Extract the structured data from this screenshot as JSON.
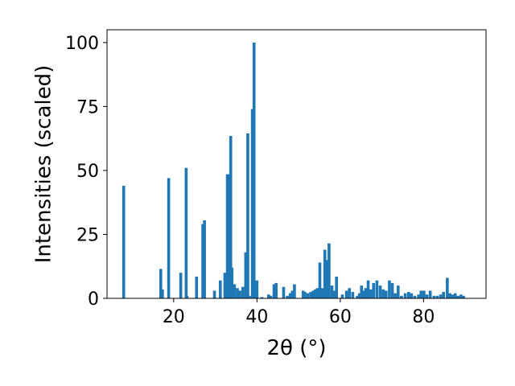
{
  "chart_data": {
    "type": "bar",
    "title": "",
    "xlabel": "2θ (°)",
    "ylabel": "Intensities (scaled)",
    "xlim": [
      4,
      95
    ],
    "ylim": [
      0,
      105
    ],
    "xticks": [
      20,
      40,
      60,
      80
    ],
    "yticks": [
      0,
      25,
      50,
      75,
      100
    ],
    "grid": false,
    "legend": "none",
    "bar_color": "#1f77b4",
    "bar_width": 0.7,
    "x": [
      8.0,
      16.9,
      17.3,
      18.8,
      21.7,
      23.0,
      23.2,
      25.5,
      27.0,
      27.4,
      29.8,
      31.2,
      32.3,
      32.9,
      33.3,
      33.7,
      34.0,
      34.6,
      35.3,
      35.9,
      36.6,
      37.3,
      37.8,
      38.2,
      38.9,
      39.3,
      39.6,
      40.0,
      41.2,
      42.8,
      43.3,
      44.1,
      44.6,
      46.4,
      47.3,
      48.0,
      48.5,
      49.0,
      51.1,
      51.5,
      52.2,
      52.9,
      53.5,
      54.0,
      54.5,
      55.1,
      55.7,
      56.3,
      56.8,
      57.3,
      58.0,
      58.6,
      59.1,
      60.5,
      61.5,
      62.2,
      63.0,
      64.1,
      64.6,
      65.1,
      65.6,
      66.1,
      66.7,
      67.3,
      68.0,
      68.8,
      69.6,
      70.3,
      71.0,
      71.8,
      72.5,
      73.2,
      73.9,
      74.7,
      75.6,
      76.4,
      77.1,
      77.9,
      78.8,
      79.4,
      80.1,
      80.8,
      81.6,
      82.5,
      83.3,
      84.1,
      84.8,
      85.7,
      86.3,
      86.9,
      87.6,
      88.3,
      89.0,
      89.6
    ],
    "values": [
      44,
      11.5,
      3.5,
      47,
      10,
      51,
      1,
      8.5,
      29,
      30.5,
      3,
      7,
      10,
      48.5,
      48.5,
      63.5,
      12,
      5.5,
      4,
      3,
      4.5,
      18,
      64.5,
      1,
      74,
      100,
      1,
      7,
      0.5,
      1.5,
      1,
      5.5,
      6,
      4.5,
      1,
      2,
      3,
      5.5,
      3,
      2.5,
      2,
      2.5,
      3,
      3.5,
      4,
      14,
      4,
      19,
      15,
      21.5,
      5,
      3,
      8.5,
      1.5,
      3,
      4,
      2.5,
      1,
      2,
      5,
      3,
      4,
      7,
      3.5,
      6,
      7,
      5,
      3.5,
      3,
      7,
      6,
      2,
      5,
      1,
      2,
      2.5,
      2,
      1,
      1.5,
      3,
      3,
      1.5,
      3,
      1,
      1,
      1.5,
      2.5,
      8,
      2,
      1.5,
      2,
      1,
      1.5,
      1
    ]
  }
}
